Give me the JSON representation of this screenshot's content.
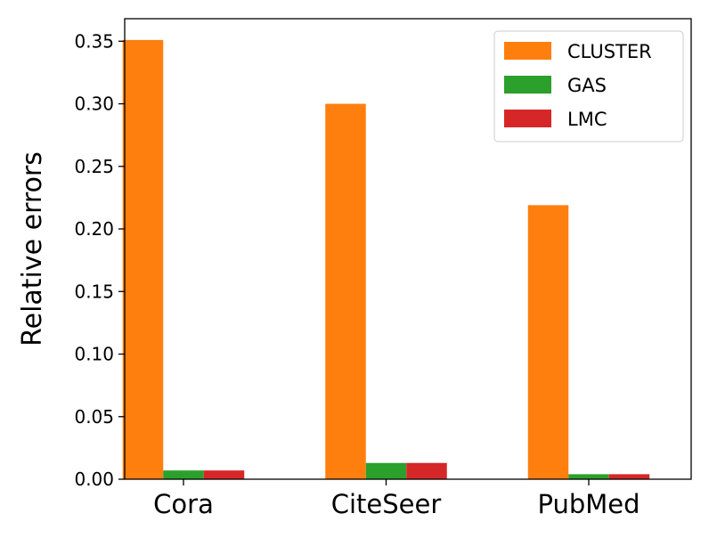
{
  "chart_data": {
    "type": "bar",
    "title": "",
    "xlabel": "",
    "ylabel": "Relative errors",
    "ylim": [
      0,
      0.368
    ],
    "yticks": [
      "0.00",
      "0.05",
      "0.10",
      "0.15",
      "0.20",
      "0.25",
      "0.30",
      "0.35"
    ],
    "categories": [
      "Cora",
      "CiteSeer",
      "PubMed"
    ],
    "series": [
      {
        "name": "CLUSTER",
        "color": "#ff7f0e",
        "values": [
          0.351,
          0.3,
          0.219
        ]
      },
      {
        "name": "GAS",
        "color": "#2ca02c",
        "values": [
          0.007,
          0.013,
          0.004
        ]
      },
      {
        "name": "LMC",
        "color": "#d62728",
        "values": [
          0.007,
          0.013,
          0.004
        ]
      }
    ],
    "legend": "top-right",
    "grid": false
  }
}
